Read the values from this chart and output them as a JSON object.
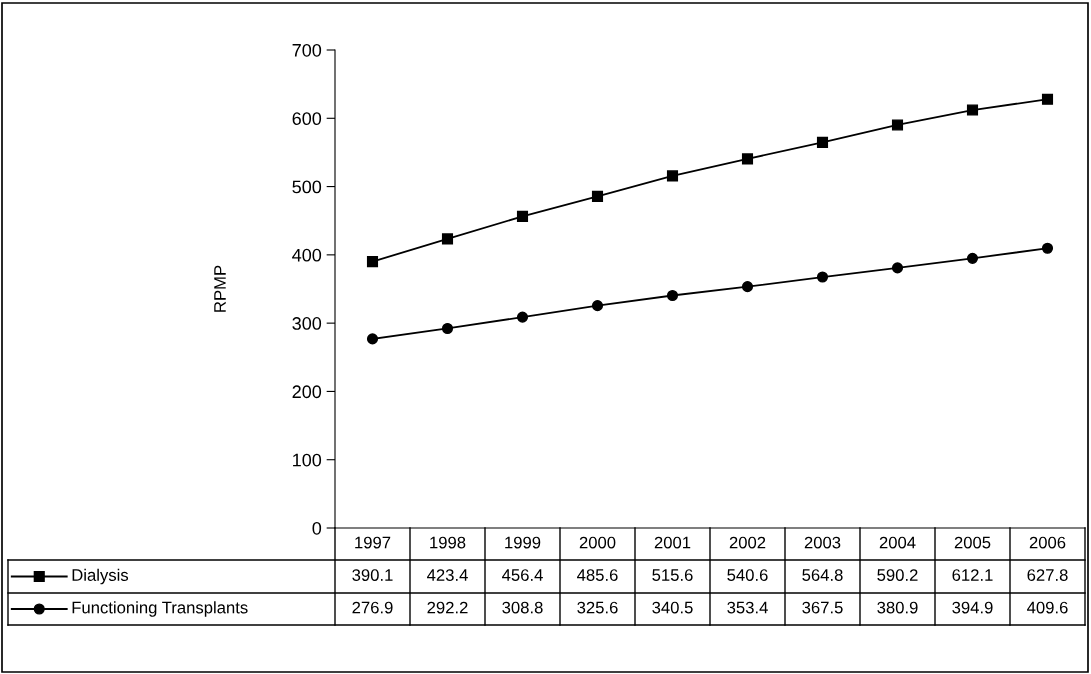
{
  "chart_data": {
    "type": "line",
    "ylabel": "RPMP",
    "categories": [
      "1997",
      "1998",
      "1999",
      "2000",
      "2001",
      "2002",
      "2003",
      "2004",
      "2005",
      "2006"
    ],
    "series": [
      {
        "name": "Dialysis",
        "color": "#000000",
        "marker": "square",
        "values": [
          390.1,
          423.4,
          456.4,
          485.6,
          515.6,
          540.6,
          564.8,
          590.2,
          612.1,
          627.8
        ]
      },
      {
        "name": "Functioning Transplants",
        "color": "#000000",
        "marker": "circle",
        "values": [
          276.9,
          292.2,
          308.8,
          325.6,
          340.5,
          353.4,
          367.5,
          380.9,
          394.9,
          409.6
        ]
      }
    ],
    "ylim": [
      0,
      700
    ],
    "yticks": [
      0,
      100,
      200,
      300,
      400,
      500,
      600,
      700
    ],
    "grid": false,
    "legend": "bottom",
    "data_labels": true,
    "line_style": "solid"
  }
}
